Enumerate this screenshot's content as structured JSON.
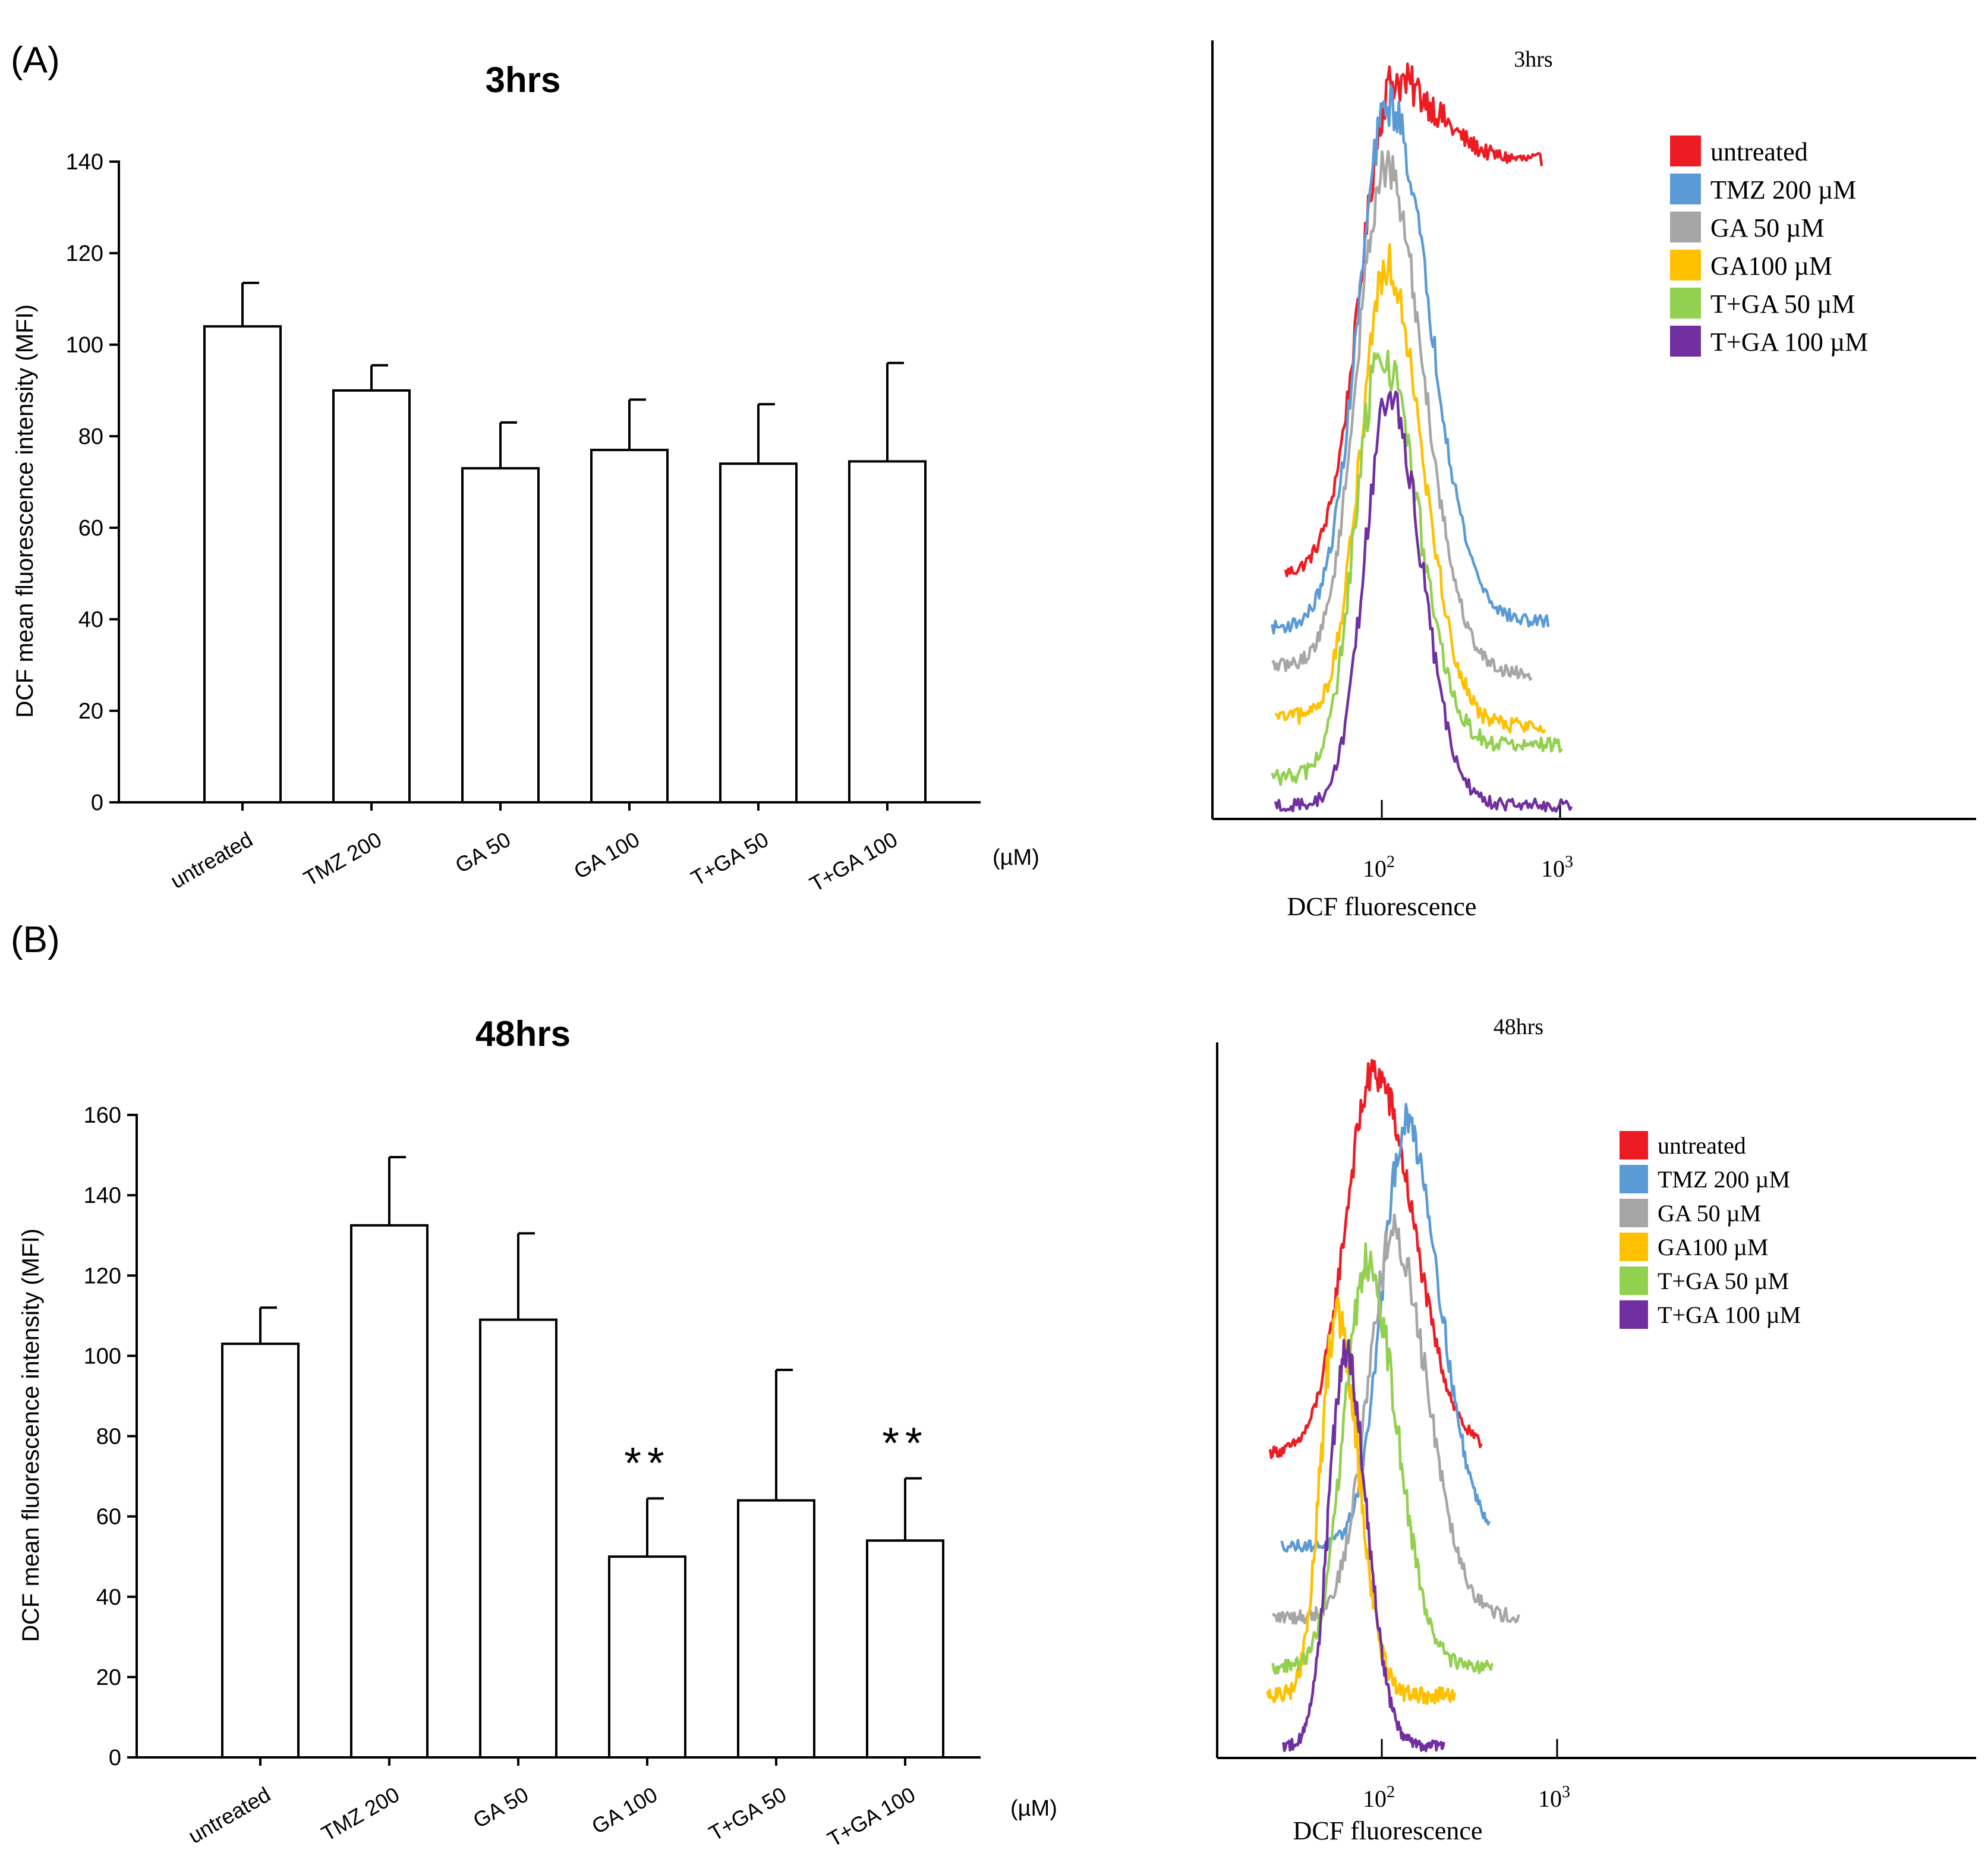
{
  "panels": [
    {
      "label": "(A)",
      "bar": {
        "type": "bar",
        "title": "3hrs",
        "ylabel": "DCF mean fluorescence intensity (MFI)",
        "unit": "(µM)",
        "ylim": [
          0,
          140
        ],
        "yticks": [
          0,
          20,
          40,
          60,
          80,
          100,
          120,
          140
        ],
        "categories": [
          "untreated",
          "TMZ 200",
          "GA 50",
          "GA 100",
          "T+GA 50",
          "T+GA 100"
        ],
        "values": [
          104,
          90,
          73,
          77,
          74,
          74.5
        ],
        "errors": [
          9.5,
          5.5,
          10,
          11,
          13,
          21.5
        ],
        "annotations": [
          "",
          "",
          "",
          "",
          "",
          ""
        ]
      },
      "histogram": {
        "type": "line",
        "title": "3hrs",
        "xlabel": "DCF fluorescence",
        "xticks": [
          "10",
          "10"
        ],
        "xtick_exponents": [
          "2",
          "3"
        ],
        "legend_position": "top-right",
        "series": [
          {
            "name": "untreated",
            "color": "#ed1c24",
            "range": [
              0.13,
              0.9
            ],
            "peak": 0.455,
            "width": 0.16,
            "height": 0.92,
            "baseline": 0.3,
            "tail": 0.82,
            "noise": 0.04
          },
          {
            "name": "TMZ 200 µM",
            "color": "#5b9bd5",
            "range": [
              0.09,
              0.92
            ],
            "peak": 0.44,
            "width": 0.15,
            "height": 0.89,
            "baseline": 0.233,
            "tail": 0.24,
            "noise": 0.04
          },
          {
            "name": "GA 50 µM",
            "color": "#a6a6a6",
            "range": [
              0.09,
              0.87
            ],
            "peak": 0.43,
            "width": 0.14,
            "height": 0.81,
            "baseline": 0.185,
            "tail": 0.175,
            "noise": 0.04
          },
          {
            "name": "GA100 µM",
            "color": "#ffc000",
            "range": [
              0.1,
              0.91
            ],
            "peak": 0.435,
            "width": 0.13,
            "height": 0.69,
            "baseline": 0.12,
            "tail": 0.11,
            "noise": 0.05
          },
          {
            "name": "T+GA 50 µM",
            "color": "#92d050",
            "range": [
              0.09,
              0.96
            ],
            "peak": 0.42,
            "width": 0.13,
            "height": 0.58,
            "baseline": 0.045,
            "tail": 0.085,
            "noise": 0.05
          },
          {
            "name": "T+GA 100 µM",
            "color": "#7030a0",
            "range": [
              0.1,
              0.99
            ],
            "peak": 0.44,
            "width": 0.12,
            "height": 0.52,
            "baseline": 0.01,
            "tail": 0.01,
            "noise": 0.04
          }
        ]
      }
    },
    {
      "label": "(B)",
      "bar": {
        "type": "bar",
        "title": "48hrs",
        "ylabel": "DCF mean fluorescence intensity (MFI)",
        "unit": "(µM)",
        "ylim": [
          0,
          160
        ],
        "yticks": [
          0,
          20,
          40,
          60,
          80,
          100,
          120,
          140,
          160
        ],
        "categories": [
          "untreated",
          "TMZ 200",
          "GA 50",
          "GA 100",
          "T+GA 50",
          "T+GA 100"
        ],
        "values": [
          103,
          132.5,
          109,
          50,
          64,
          54
        ],
        "errors": [
          9,
          17,
          21.5,
          14.5,
          32.5,
          15.5
        ],
        "annotations": [
          "",
          "",
          "",
          "**",
          "",
          "**"
        ]
      },
      "histogram": {
        "type": "line",
        "title": "48hrs",
        "xlabel": "DCF fluorescence",
        "xticks": [
          "10",
          "10"
        ],
        "xtick_exponents": [
          "2",
          "3"
        ],
        "legend_position": "top-right",
        "series": [
          {
            "name": "untreated",
            "color": "#ed1c24",
            "range": [
              0.06,
              0.85
            ],
            "peak": 0.45,
            "width": 0.18,
            "height": 0.95,
            "baseline": 0.42,
            "tail": 0.42,
            "noise": 0.04
          },
          {
            "name": "TMZ 200 µM",
            "color": "#5b9bd5",
            "range": [
              0.1,
              0.88
            ],
            "peak": 0.57,
            "width": 0.15,
            "height": 0.88,
            "baseline": 0.29,
            "tail": 0.3,
            "noise": 0.04
          },
          {
            "name": "GA 50 µM",
            "color": "#a6a6a6",
            "range": [
              0.07,
              0.99
            ],
            "peak": 0.52,
            "width": 0.16,
            "height": 0.72,
            "baseline": 0.19,
            "tail": 0.19,
            "noise": 0.05
          },
          {
            "name": "GA100 µM",
            "color": "#ffc000",
            "range": [
              0.05,
              0.75
            ],
            "peak": 0.31,
            "width": 0.1,
            "height": 0.62,
            "baseline": 0.08,
            "tail": 0.08,
            "noise": 0.06
          },
          {
            "name": "T+GA 50 µM",
            "color": "#92d050",
            "range": [
              0.07,
              0.89
            ],
            "peak": 0.42,
            "width": 0.14,
            "height": 0.68,
            "baseline": 0.12,
            "tail": 0.12,
            "noise": 0.05
          },
          {
            "name": "T+GA 100 µM",
            "color": "#7030a0",
            "range": [
              0.11,
              0.71
            ],
            "peak": 0.34,
            "width": 0.1,
            "height": 0.56,
            "baseline": 0.01,
            "tail": 0.01,
            "noise": 0.04
          }
        ]
      }
    }
  ],
  "chart_data": [
    {
      "type": "bar",
      "title": "3hrs",
      "categories": [
        "untreated",
        "TMZ 200",
        "GA 50",
        "GA 100",
        "T+GA 50",
        "T+GA 100"
      ],
      "values": [
        104,
        90,
        73,
        77,
        74,
        74.5
      ],
      "errors": [
        9.5,
        5.5,
        10,
        11,
        13,
        21.5
      ],
      "xlabel": "(µM)",
      "ylabel": "DCF mean fluorescence intensity (MFI)",
      "ylim": [
        0,
        140
      ]
    },
    {
      "type": "line",
      "title": "3hrs",
      "xlabel": "DCF fluorescence",
      "x_scale": "log",
      "series": [
        "untreated",
        "TMZ 200 µM",
        "GA 50 µM",
        "GA100 µM",
        "T+GA 50 µM",
        "T+GA 100 µM"
      ]
    },
    {
      "type": "bar",
      "title": "48hrs",
      "categories": [
        "untreated",
        "TMZ 200",
        "GA 50",
        "GA 100",
        "T+GA 50",
        "T+GA 100"
      ],
      "values": [
        103,
        132.5,
        109,
        50,
        64,
        54
      ],
      "errors": [
        9,
        17,
        21.5,
        14.5,
        32.5,
        15.5
      ],
      "significance": [
        "",
        "",
        "",
        "**",
        "",
        "**"
      ],
      "xlabel": "(µM)",
      "ylabel": "DCF mean fluorescence intensity (MFI)",
      "ylim": [
        0,
        160
      ]
    },
    {
      "type": "line",
      "title": "48hrs",
      "xlabel": "DCF fluorescence",
      "x_scale": "log",
      "series": [
        "untreated",
        "TMZ 200 µM",
        "GA 50 µM",
        "GA100 µM",
        "T+GA 50 µM",
        "T+GA 100 µM"
      ]
    }
  ]
}
